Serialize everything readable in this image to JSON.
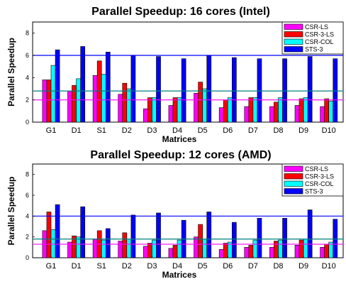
{
  "chart_data": [
    {
      "type": "bar",
      "title": "Parallel Speedup: 16 cores (Intel)",
      "xlabel": "Matrices",
      "ylabel": "Parallel Speedup",
      "ylim": [
        0,
        9
      ],
      "yticks": [
        0,
        2,
        4,
        6,
        8
      ],
      "categories": [
        "G1",
        "D1",
        "S1",
        "D2",
        "D3",
        "D4",
        "D5",
        "D6",
        "D7",
        "D8",
        "D9",
        "D10"
      ],
      "series": [
        {
          "name": "CSR-LS",
          "color": "#ff00ff",
          "values": [
            3.8,
            2.8,
            4.2,
            2.5,
            1.2,
            1.5,
            2.6,
            1.3,
            1.4,
            1.4,
            1.5,
            1.4
          ]
        },
        {
          "name": "CSR-3-LS",
          "color": "#ff0000",
          "values": [
            3.8,
            3.3,
            5.5,
            3.5,
            2.2,
            2.2,
            3.6,
            2.0,
            2.2,
            1.8,
            2.1,
            2.1
          ]
        },
        {
          "name": "CSR-COL",
          "color": "#00ffff",
          "values": [
            5.1,
            3.9,
            4.3,
            3.0,
            2.2,
            2.2,
            3.0,
            2.2,
            2.2,
            2.2,
            2.2,
            1.9
          ]
        },
        {
          "name": "STS-3",
          "color": "#0000ff",
          "values": [
            6.5,
            6.8,
            6.3,
            6.0,
            5.9,
            5.7,
            6.0,
            5.8,
            5.7,
            5.7,
            5.9,
            5.7
          ]
        }
      ],
      "reference_lines": [
        {
          "color": "#0000ff",
          "value": 6.0
        },
        {
          "color": "#008080",
          "value": 2.8
        },
        {
          "color": "#ff00ff",
          "value": 2.0
        }
      ],
      "legend": "top-right",
      "grid": false
    },
    {
      "type": "bar",
      "title": "Parallel Speedup: 12 cores (AMD)",
      "xlabel": "Matrices",
      "ylabel": "Parallel Speedup",
      "ylim": [
        0,
        9
      ],
      "yticks": [
        0,
        2,
        4,
        6,
        8
      ],
      "categories": [
        "G1",
        "D1",
        "S1",
        "D2",
        "D3",
        "D4",
        "D5",
        "D6",
        "D7",
        "D8",
        "D9",
        "D10"
      ],
      "series": [
        {
          "name": "CSR-LS",
          "color": "#ff00ff",
          "values": [
            2.6,
            1.5,
            1.8,
            1.6,
            1.1,
            0.9,
            2.0,
            0.8,
            1.0,
            1.0,
            1.2,
            1.0
          ]
        },
        {
          "name": "CSR-3-LS",
          "color": "#ff0000",
          "values": [
            4.4,
            2.1,
            2.6,
            2.4,
            1.4,
            1.2,
            3.2,
            1.4,
            1.2,
            1.6,
            1.7,
            1.3
          ]
        },
        {
          "name": "CSR-COL",
          "color": "#00ffff",
          "values": [
            2.7,
            2.0,
            1.7,
            1.8,
            1.7,
            1.7,
            1.8,
            1.5,
            1.7,
            1.7,
            1.8,
            1.5
          ]
        },
        {
          "name": "STS-3",
          "color": "#0000ff",
          "values": [
            5.1,
            4.9,
            2.8,
            4.1,
            4.3,
            3.6,
            4.4,
            3.4,
            3.8,
            3.8,
            4.6,
            3.7
          ]
        }
      ],
      "reference_lines": [
        {
          "color": "#0000ff",
          "value": 4.0
        },
        {
          "color": "#008080",
          "value": 1.8
        },
        {
          "color": "#ff00ff",
          "value": 1.3
        }
      ],
      "legend": "top-right",
      "grid": false
    }
  ]
}
